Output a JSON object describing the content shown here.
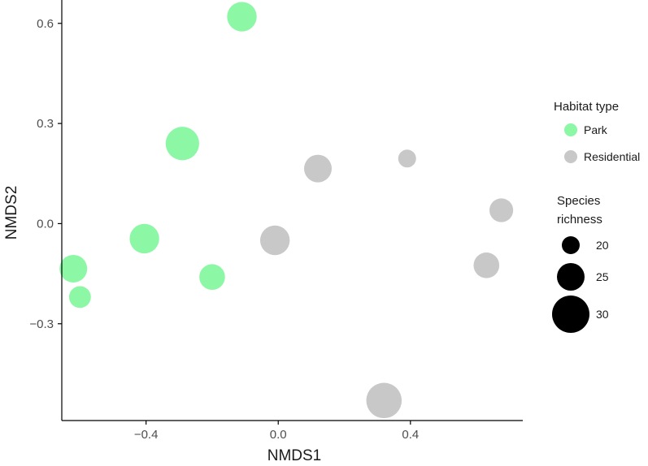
{
  "chart_data": {
    "type": "scatter",
    "title": "",
    "xlabel": "NMDS1",
    "ylabel": "NMDS2",
    "xlim": [
      -0.655,
      0.74
    ],
    "ylim": [
      -0.59,
      0.67
    ],
    "x_ticks": [
      {
        "value": -0.4,
        "label": "−0.4"
      },
      {
        "value": 0.0,
        "label": "0.0"
      },
      {
        "value": 0.4,
        "label": "0.4"
      }
    ],
    "y_ticks": [
      {
        "value": 0.6,
        "label": "0.6"
      },
      {
        "value": 0.3,
        "label": "0.3"
      },
      {
        "value": 0.0,
        "label": "0.0"
      },
      {
        "value": -0.3,
        "label": "−0.3"
      }
    ],
    "grid": false,
    "color_legend": {
      "title": "Habitat type",
      "placement": "right",
      "entries": [
        {
          "name": "Park",
          "color": "#8cf7a5"
        },
        {
          "name": "Residential",
          "color": "#c8c8c8"
        }
      ]
    },
    "size_legend": {
      "title_line1": "Species",
      "title_line2": "richness",
      "entries": [
        {
          "value": 20,
          "label": "20"
        },
        {
          "value": 25,
          "label": "25"
        },
        {
          "value": 30,
          "label": "30"
        }
      ]
    },
    "series": [
      {
        "name": "Park",
        "color": "#8cf7a5",
        "points": [
          {
            "x": -0.11,
            "y": 0.62,
            "richness": 26
          },
          {
            "x": -0.29,
            "y": 0.24,
            "richness": 28
          },
          {
            "x": -0.405,
            "y": -0.045,
            "richness": 26
          },
          {
            "x": -0.62,
            "y": -0.135,
            "richness": 25
          },
          {
            "x": -0.6,
            "y": -0.22,
            "richness": 22
          },
          {
            "x": -0.2,
            "y": -0.16,
            "richness": 24
          }
        ]
      },
      {
        "name": "Residential",
        "color": "#c8c8c8",
        "points": [
          {
            "x": 0.12,
            "y": 0.165,
            "richness": 25
          },
          {
            "x": 0.39,
            "y": 0.195,
            "richness": 20
          },
          {
            "x": -0.01,
            "y": -0.05,
            "richness": 26
          },
          {
            "x": 0.63,
            "y": -0.125,
            "richness": 24
          },
          {
            "x": 0.675,
            "y": 0.04,
            "richness": 23
          },
          {
            "x": 0.32,
            "y": -0.53,
            "richness": 29
          }
        ]
      }
    ]
  }
}
